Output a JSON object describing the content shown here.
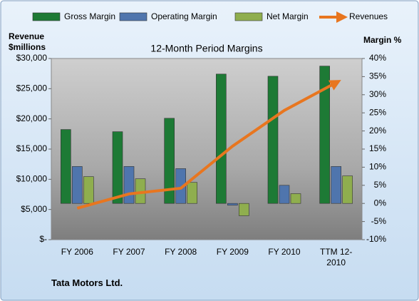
{
  "chart_data": {
    "type": "bar-line",
    "title": "12-Month Period Margins",
    "y_label": "Revenue $millions",
    "y2_label": "Margin %",
    "source": "Tata Motors Ltd.",
    "categories": [
      "FY 2006",
      "FY 2007",
      "FY 2008",
      "FY 2009",
      "FY 2010",
      "TTM 12-2010"
    ],
    "series": [
      {
        "name": "Gross Margin",
        "color": "#1d7a35",
        "axis": "y2",
        "values": [
          20.4,
          19.8,
          23.5,
          35.7,
          35.1,
          37.9
        ]
      },
      {
        "name": "Operating Margin",
        "color": "#4f75ad",
        "axis": "y2",
        "values": [
          10.2,
          10.2,
          9.6,
          -0.5,
          5.0,
          10.2
        ]
      },
      {
        "name": "Net Margin",
        "color": "#8fae4e",
        "axis": "y2",
        "values": [
          7.4,
          6.8,
          5.8,
          -3.4,
          2.7,
          7.6
        ]
      },
      {
        "name": "Revenues",
        "color": "#e8761f",
        "type": "line",
        "values": [
          5200,
          7570,
          8510,
          15480,
          21400,
          26000
        ]
      }
    ],
    "ylim": [
      0,
      30000
    ],
    "yticks": [
      {
        "value": 0,
        "label": "$-"
      },
      {
        "value": 5000,
        "label": "$5,000"
      },
      {
        "value": 10000,
        "label": "$10,000"
      },
      {
        "value": 15000,
        "label": "$15,000"
      },
      {
        "value": 20000,
        "label": "$20,000"
      },
      {
        "value": 25000,
        "label": "$25,000"
      },
      {
        "value": 30000,
        "label": "$30,000"
      }
    ],
    "y2lim": [
      -10,
      40
    ],
    "y2ticks": [
      {
        "value": -10,
        "label": "-10%"
      },
      {
        "value": -5,
        "label": "-5%"
      },
      {
        "value": 0,
        "label": "0%"
      },
      {
        "value": 5,
        "label": "5%"
      },
      {
        "value": 10,
        "label": "10%"
      },
      {
        "value": 15,
        "label": "15%"
      },
      {
        "value": 20,
        "label": "20%"
      },
      {
        "value": 25,
        "label": "25%"
      },
      {
        "value": 30,
        "label": "30%"
      },
      {
        "value": 35,
        "label": "35%"
      },
      {
        "value": 40,
        "label": "40%"
      }
    ]
  }
}
